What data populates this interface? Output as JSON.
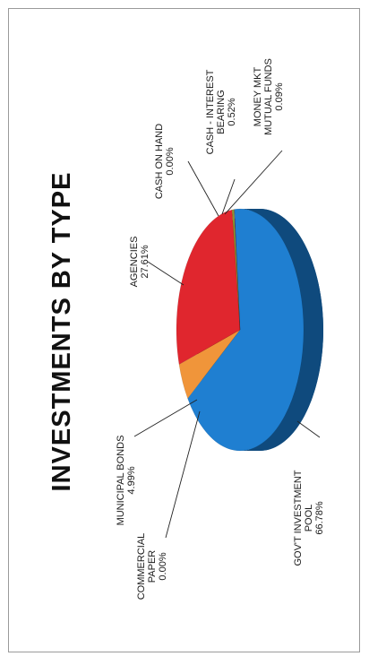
{
  "chart_data": {
    "type": "pie",
    "title": "INVESTMENTS BY TYPE",
    "slices": [
      {
        "key": "govt",
        "lines": [
          "GOV'T INVESTMENT",
          "POOL",
          "66.78%"
        ],
        "label": "GOV'T INVESTMENT POOL",
        "value": 66.78,
        "color": "#1f7fd1",
        "side": "#0f4a7d"
      },
      {
        "key": "municipal",
        "lines": [
          "MUNICIPAL BONDS",
          "4.99%"
        ],
        "label": "MUNICIPAL BONDS",
        "value": 4.99,
        "color": "#f0953a",
        "side": "#b0621c"
      },
      {
        "key": "commercial",
        "lines": [
          "COMMERCIAL",
          "PAPER",
          "0.00%"
        ],
        "label": "COMMERCIAL PAPER",
        "value": 0.0,
        "color": "#f0953a",
        "side": "#b0621c"
      },
      {
        "key": "agencies",
        "lines": [
          "AGENCIES",
          "27.61%"
        ],
        "label": "AGENCIES",
        "value": 27.61,
        "color": "#e0262e",
        "side": "#8f1a1e"
      },
      {
        "key": "cash",
        "lines": [
          "CASH ON HAND",
          "0.00%"
        ],
        "label": "CASH ON HAND",
        "value": 0.0,
        "color": "#e0262e",
        "side": "#8f1a1e"
      },
      {
        "key": "cashint",
        "lines": [
          "CASH - INTEREST",
          "BEARING",
          "0.52%"
        ],
        "label": "CASH - INTEREST BEARING",
        "value": 0.52,
        "color": "#8a9a30",
        "side": "#55601c"
      },
      {
        "key": "mmkt",
        "lines": [
          "MONEY MKT",
          "MUTUAL FUNDS",
          "0.09%"
        ],
        "label": "MONEY MKT MUTUAL FUNDS",
        "value": 0.09,
        "color": "#6a3f98",
        "side": "#3f2560"
      }
    ]
  }
}
